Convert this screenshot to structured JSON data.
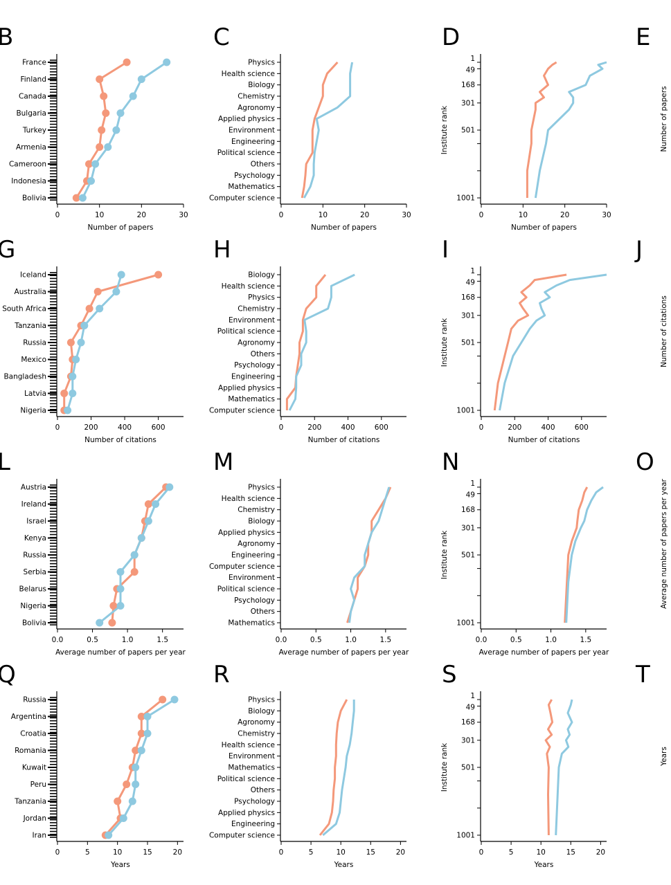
{
  "colors": {
    "series_a": "#f4987a",
    "series_b": "#8ec9e0",
    "axis": "#000000"
  },
  "panels_partial_right": [
    {
      "letter": "E",
      "ylabel": "Number of papers"
    },
    {
      "letter": "J",
      "ylabel": "Number of citations"
    },
    {
      "letter": "O",
      "ylabel": "Average number of papers per year"
    },
    {
      "letter": "T",
      "ylabel": "Years"
    }
  ],
  "chart_data": [
    {
      "letter": "B",
      "type": "line",
      "kind": "country",
      "partial_letter": true,
      "xlabel": "Number of papers",
      "xlim": [
        0,
        30
      ],
      "xticks": [
        0,
        10,
        20,
        30
      ],
      "ytick_labels": [
        "France",
        "Finland",
        "Canada",
        "Bulgaria",
        "Turkey",
        "Armenia",
        "Cameroon",
        "Indonesia",
        "Bolivia"
      ],
      "series": [
        {
          "values": [
            16.5,
            10,
            11,
            11.5,
            10.5,
            10,
            7.5,
            7,
            4.5
          ]
        },
        {
          "values": [
            26,
            20,
            18,
            15,
            14,
            12,
            9,
            8,
            6
          ]
        }
      ]
    },
    {
      "letter": "C",
      "type": "line",
      "kind": "category",
      "xlabel": "Number of papers",
      "xlim": [
        0,
        30
      ],
      "xticks": [
        0,
        10,
        20,
        30
      ],
      "ytick_labels": [
        "Physics",
        "Health science",
        "Biology",
        "Chemistry",
        "Agronomy",
        "Applied physics",
        "Environment",
        "Engineering",
        "Political science",
        "Others",
        "Psychology",
        "Mathematics",
        "Computer science"
      ],
      "series": [
        {
          "values": [
            13.5,
            11,
            10,
            10,
            9,
            8,
            7.5,
            7.5,
            7.5,
            6,
            5.8,
            5.5,
            5
          ]
        },
        {
          "values": [
            17,
            16.5,
            16.5,
            16.5,
            13.5,
            8.5,
            9,
            8.5,
            8,
            7.8,
            7.8,
            7,
            5.5
          ]
        }
      ]
    },
    {
      "letter": "D",
      "type": "line",
      "kind": "rank",
      "xlabel": "Number of papers",
      "xlim": [
        0,
        30
      ],
      "xticks": [
        0,
        10,
        20,
        30
      ],
      "ylabel": "Institute rank",
      "ytick_labels": [
        "1",
        "49",
        "168",
        "301",
        "501",
        "1001"
      ],
      "series": [
        {
          "ranks": [
            1,
            20,
            49,
            100,
            168,
            220,
            260,
            301,
            350,
            501,
            600,
            800,
            1001
          ],
          "values": [
            18,
            17,
            16,
            15,
            16,
            14,
            15,
            13,
            13,
            12,
            12,
            11,
            11
          ]
        },
        {
          "ranks": [
            1,
            20,
            49,
            100,
            168,
            220,
            260,
            301,
            350,
            501,
            600,
            800,
            1001
          ],
          "values": [
            30,
            28,
            29,
            26,
            25,
            21,
            22,
            22,
            21,
            16,
            15.5,
            14,
            13
          ]
        }
      ]
    },
    {
      "letter": "G",
      "type": "line",
      "kind": "country",
      "partial_letter": true,
      "xlabel": "Number of citations",
      "xlim": [
        0,
        750
      ],
      "xticks": [
        0,
        200,
        400,
        600
      ],
      "ytick_labels": [
        "Iceland",
        "Australia",
        "South Africa",
        "Tanzania",
        "Russia",
        "Mexico",
        "Bangladesh",
        "Latvia",
        "Nigeria"
      ],
      "series": [
        {
          "values": [
            600,
            240,
            190,
            140,
            80,
            90,
            80,
            40,
            40
          ]
        },
        {
          "values": [
            380,
            350,
            250,
            160,
            140,
            110,
            90,
            90,
            60
          ]
        }
      ]
    },
    {
      "letter": "H",
      "type": "line",
      "kind": "category",
      "xlabel": "Number of citations",
      "xlim": [
        0,
        750
      ],
      "xticks": [
        0,
        200,
        400,
        600
      ],
      "ytick_labels": [
        "Biology",
        "Health science",
        "Physics",
        "Chemistry",
        "Environment",
        "Political science",
        "Agronomy",
        "Others",
        "Psychology",
        "Engineering",
        "Applied physics",
        "Mathematics",
        "Computer science"
      ],
      "series": [
        {
          "values": [
            265,
            210,
            210,
            150,
            130,
            130,
            110,
            110,
            100,
            90,
            85,
            35,
            35
          ]
        },
        {
          "values": [
            440,
            300,
            300,
            280,
            140,
            150,
            150,
            120,
            120,
            90,
            90,
            85,
            50
          ]
        }
      ]
    },
    {
      "letter": "I",
      "type": "line",
      "kind": "rank",
      "xlabel": "Number of citations",
      "xlim": [
        0,
        750
      ],
      "xticks": [
        0,
        200,
        400,
        600
      ],
      "ylabel": "Institute rank",
      "ytick_labels": [
        "1",
        "49",
        "168",
        "301",
        "501",
        "1001"
      ],
      "series": [
        {
          "ranks": [
            1,
            40,
            80,
            130,
            168,
            210,
            250,
            301,
            340,
            400,
            501,
            600,
            800,
            1001
          ],
          "values": [
            510,
            320,
            290,
            240,
            270,
            230,
            250,
            280,
            220,
            180,
            160,
            140,
            100,
            80
          ]
        },
        {
          "ranks": [
            1,
            40,
            80,
            130,
            168,
            210,
            250,
            301,
            340,
            400,
            501,
            600,
            800,
            1001
          ],
          "values": [
            750,
            530,
            450,
            380,
            410,
            350,
            360,
            380,
            330,
            290,
            240,
            190,
            140,
            110
          ]
        }
      ]
    },
    {
      "letter": "L",
      "type": "line",
      "kind": "country",
      "partial_letter": true,
      "xlabel": "Average number of papers per year",
      "xlim": [
        0,
        1.8
      ],
      "xticks": [
        0,
        0.5,
        1,
        1.5
      ],
      "xtick_labels": [
        "0.0",
        "0.5",
        "1.0",
        "1.5"
      ],
      "ytick_labels": [
        "Austria",
        "Ireland",
        "Israel",
        "Kenya",
        "Russia",
        "Serbia",
        "Belarus",
        "Nigeria",
        "Bolivia"
      ],
      "series": [
        {
          "values": [
            1.55,
            1.3,
            1.25,
            1.2,
            1.1,
            1.1,
            0.85,
            0.8,
            0.78
          ]
        },
        {
          "values": [
            1.6,
            1.4,
            1.3,
            1.2,
            1.1,
            0.9,
            0.9,
            0.9,
            0.6
          ]
        }
      ]
    },
    {
      "letter": "M",
      "type": "line",
      "kind": "category",
      "xlabel": "Average number of papers per year",
      "xlim": [
        0,
        1.8
      ],
      "xticks": [
        0,
        0.5,
        1,
        1.5
      ],
      "xtick_labels": [
        "0.0",
        "0.5",
        "1.0",
        "1.5"
      ],
      "ytick_labels": [
        "Physics",
        "Health science",
        "Chemistry",
        "Biology",
        "Applied physics",
        "Agronomy",
        "Engineering",
        "Computer science",
        "Environment",
        "Political science",
        "Psychology",
        "Others",
        "Mathematics"
      ],
      "series": [
        {
          "values": [
            1.57,
            1.5,
            1.4,
            1.3,
            1.3,
            1.25,
            1.25,
            1.2,
            1.1,
            1.1,
            1.05,
            1.0,
            0.95
          ]
        },
        {
          "values": [
            1.55,
            1.5,
            1.45,
            1.4,
            1.3,
            1.25,
            1.2,
            1.2,
            1.05,
            1.0,
            1.05,
            1.0,
            0.98
          ]
        }
      ]
    },
    {
      "letter": "N",
      "type": "line",
      "kind": "rank",
      "xlabel": "Average number of papers per year",
      "xlim": [
        0,
        1.8
      ],
      "xticks": [
        0,
        0.5,
        1,
        1.5
      ],
      "xtick_labels": [
        "0.0",
        "0.5",
        "1.0",
        "1.5"
      ],
      "ylabel": "Institute rank",
      "ytick_labels": [
        "1",
        "49",
        "168",
        "301",
        "501",
        "1001"
      ],
      "series": [
        {
          "ranks": [
            1,
            40,
            100,
            168,
            250,
            301,
            400,
            501,
            700,
            1001
          ],
          "values": [
            1.52,
            1.48,
            1.45,
            1.4,
            1.38,
            1.37,
            1.3,
            1.25,
            1.23,
            1.2
          ]
        },
        {
          "ranks": [
            1,
            40,
            100,
            168,
            250,
            301,
            400,
            501,
            700,
            1001
          ],
          "values": [
            1.75,
            1.65,
            1.58,
            1.52,
            1.48,
            1.43,
            1.35,
            1.3,
            1.25,
            1.22
          ]
        }
      ]
    },
    {
      "letter": "Q",
      "type": "line",
      "kind": "country",
      "partial_letter": true,
      "xlabel": "Years",
      "xlim": [
        0,
        21
      ],
      "xticks": [
        0,
        5,
        10,
        15,
        20
      ],
      "ytick_labels": [
        "Russia",
        "Argentina",
        "Croatia",
        "Romania",
        "Kuwait",
        "Peru",
        "Tanzania",
        "Jordan",
        "Iran"
      ],
      "series": [
        {
          "values": [
            17.5,
            14,
            14,
            13,
            12.5,
            11.5,
            10,
            10.5,
            8
          ]
        },
        {
          "values": [
            19.5,
            15,
            15,
            14,
            13,
            13,
            12.5,
            11,
            8.5
          ]
        }
      ]
    },
    {
      "letter": "R",
      "type": "line",
      "kind": "category",
      "xlabel": "Years",
      "xlim": [
        0,
        21
      ],
      "xticks": [
        0,
        5,
        10,
        15,
        20
      ],
      "ytick_labels": [
        "Physics",
        "Biology",
        "Agronomy",
        "Chemistry",
        "Health science",
        "Environment",
        "Mathematics",
        "Political science",
        "Others",
        "Psychology",
        "Applied physics",
        "Engineering",
        "Computer science"
      ],
      "series": [
        {
          "values": [
            11,
            10,
            9.5,
            9.3,
            9.2,
            9.2,
            9,
            9,
            8.8,
            8.7,
            8.5,
            8,
            6.5
          ]
        },
        {
          "values": [
            12.2,
            12.2,
            12,
            11.8,
            11.5,
            11,
            10.8,
            10.5,
            10.2,
            10,
            9.8,
            9.2,
            7
          ]
        }
      ]
    },
    {
      "letter": "S",
      "type": "line",
      "kind": "rank",
      "xlabel": "Years",
      "xlim": [
        0,
        21
      ],
      "xticks": [
        0,
        5,
        10,
        15,
        20
      ],
      "ylabel": "Institute rank",
      "ytick_labels": [
        "1",
        "49",
        "168",
        "301",
        "501",
        "1001"
      ],
      "series": [
        {
          "ranks": [
            1,
            40,
            100,
            168,
            220,
            260,
            301,
            350,
            400,
            501,
            700,
            1001
          ],
          "values": [
            11.8,
            11.3,
            11.6,
            11.9,
            11.2,
            11.8,
            10.8,
            11.5,
            11,
            11.3,
            11.2,
            11.3
          ]
        },
        {
          "ranks": [
            1,
            40,
            100,
            168,
            220,
            260,
            301,
            350,
            400,
            501,
            700,
            1001
          ],
          "values": [
            15.2,
            15,
            14.5,
            15.2,
            14.5,
            14.8,
            14.2,
            14.6,
            13.5,
            13,
            12.8,
            12.5
          ]
        }
      ]
    }
  ]
}
